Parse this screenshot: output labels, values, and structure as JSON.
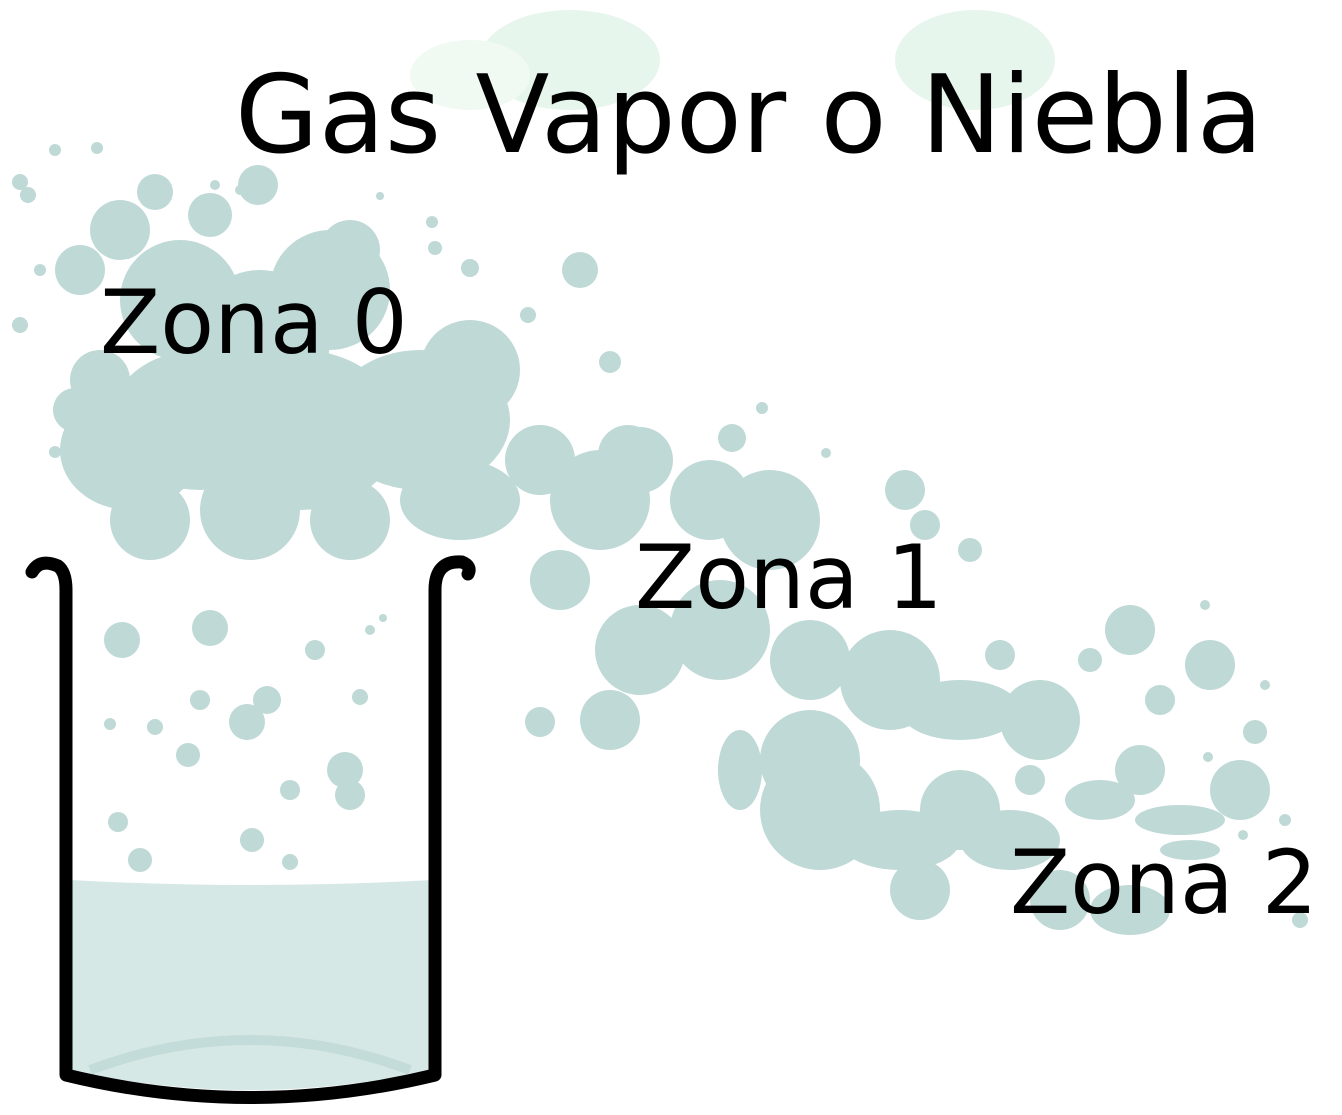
{
  "title": "Gas Vapor o Niebla",
  "zones": [
    {
      "label": "Zona 0"
    },
    {
      "label": "Zona 1"
    },
    {
      "label": "Zona 2"
    }
  ]
}
